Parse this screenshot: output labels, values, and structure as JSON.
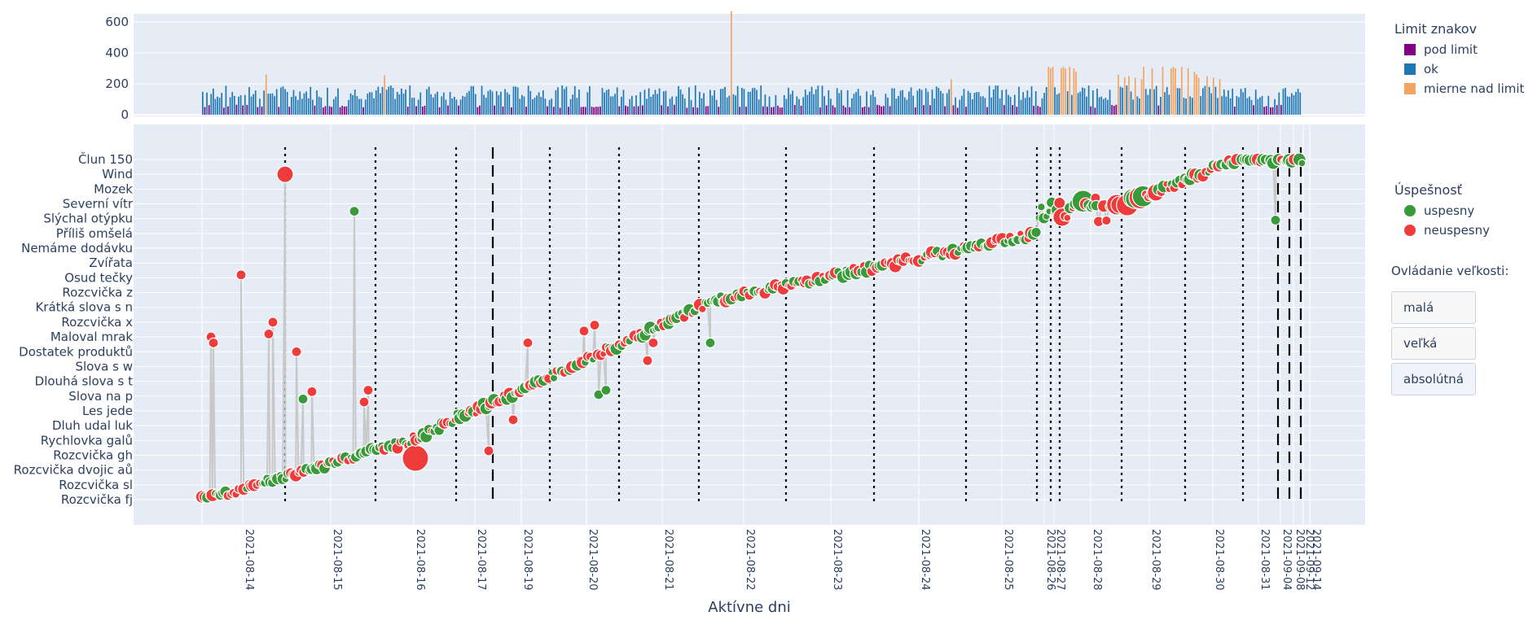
{
  "chart_data": [
    {
      "type": "bar",
      "ylim": [
        0,
        700
      ],
      "yticks": [
        0,
        200,
        400,
        600
      ],
      "grid": true,
      "legend": {
        "title": "Limit znakov",
        "placement": "top-right",
        "entries": [
          {
            "name": "pod limit",
            "color": "#800080"
          },
          {
            "name": "ok",
            "color": "#1f77b4"
          },
          {
            "name": "mierne nad limit",
            "color": "#f4a460"
          }
        ]
      },
      "series_note": "character count per attempt, one thin bar per attempt",
      "notable_values": [
        260,
        255,
        670,
        230,
        310,
        300,
        310,
        300,
        310,
        300,
        310,
        300,
        280,
        260,
        240,
        250,
        240,
        230
      ]
    },
    {
      "type": "scatter",
      "xlabel": "Aktívne dni",
      "ylabel": "",
      "grid": true,
      "x_ticks": [
        "2021-08-14",
        "2021-08-15",
        "2021-08-16",
        "2021-08-17",
        "2021-08-19",
        "2021-08-20",
        "2021-08-21",
        "2021-08-22",
        "2021-08-23",
        "2021-08-24",
        "2021-08-25",
        "2021-08-26",
        "2021-08-27",
        "2021-08-28",
        "2021-08-29",
        "2021-08-30",
        "2021-08-31",
        "2021-09-04",
        "2021-09-08",
        "2021-09-12",
        "2021-09-14"
      ],
      "y_categories": [
        "Rozcvička fj",
        "Rozcvička sl",
        "Rozcvička dvojic aů",
        "Rozcvička gh",
        "Rychlovka galů",
        "Dluh udal luk",
        "Les jede",
        "Slova na p",
        "Dlouhá slova s t",
        "Slova s w",
        "Dostatek produktů",
        "Maloval mrak",
        "Rozcvička x",
        "Krátká slova s n",
        "Rozcvička z",
        "Osud tečky",
        "Zvířata",
        "Nemáme dodávku",
        "Příliš omšelá",
        "Slýchal otýpku",
        "Severní vítr",
        "Mozek",
        "Wind",
        "Člun 150"
      ],
      "legend": {
        "title": "Úspešnosť",
        "placement": "right",
        "entries": [
          {
            "name": "uspesny",
            "color": "#3a9a3a"
          },
          {
            "name": "neuspesny",
            "color": "#ee3b3b"
          }
        ]
      },
      "day_boundaries": [
        "2021-08-14",
        "2021-08-15",
        "2021-08-16",
        "2021-08-17",
        "2021-08-19",
        "2021-08-20",
        "2021-08-21",
        "2021-08-22",
        "2021-08-23",
        "2021-08-24",
        "2021-08-25",
        "2021-08-26",
        "2021-08-27",
        "2021-08-28",
        "2021-08-29",
        "2021-08-30",
        "2021-08-31",
        "2021-09-04",
        "2021-09-08",
        "2021-09-12"
      ],
      "series_note": "each attempt is a marker at its lesson level; connected by a grey line; marker size reflects attempt size"
    }
  ],
  "controls": {
    "size_title": "Ovládanie veľkosti:",
    "buttons": [
      "malá",
      "veľká",
      "absolútná"
    ]
  },
  "colors": {
    "plot_bg": "#e5ecf6",
    "grid": "#ffffff",
    "success": "#3a9a3a",
    "fail": "#ee3b3b",
    "path": "#c8c8c8"
  }
}
